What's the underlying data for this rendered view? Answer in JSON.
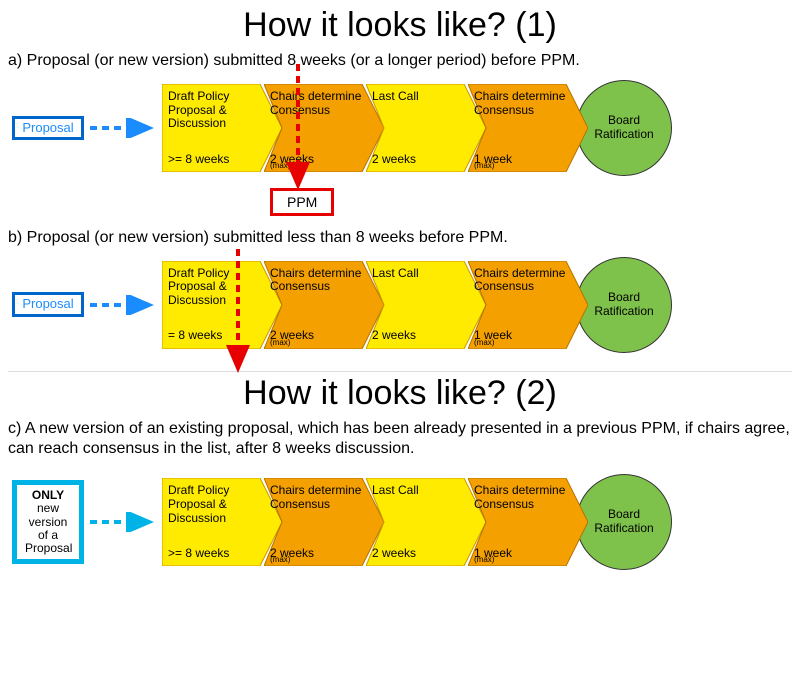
{
  "colors": {
    "yellow": "#ffeb00",
    "yellow_stroke": "#cc9900",
    "orange": "#f4a000",
    "orange_stroke": "#b57400",
    "green": "#7fc24b",
    "blue": "#1a8cff",
    "blue_dark": "#0066cc",
    "cyan": "#00b3e6",
    "red": "#e60000",
    "black": "#000000"
  },
  "layout": {
    "chevron_w": 120,
    "chevron_h": 88,
    "chevron_overlap": -18,
    "circle_d": 96,
    "arrow_len": 70
  },
  "title1": "How it looks like? (1)",
  "title2": "How it looks like? (2)",
  "section_a": {
    "desc": "a) Proposal (or new version) submitted 8 weeks (or a longer period) before PPM.",
    "proposal_label": "Proposal",
    "ppm_label": "PPM"
  },
  "section_b": {
    "desc": "b) Proposal (or new version) submitted less than 8 weeks before PPM.",
    "proposal_label": "Proposal"
  },
  "section_c": {
    "desc": "c) A new version of an existing proposal, which has been already presented in a previous PPM, if chairs agree, can reach consensus in the list, after 8 weeks discussion.",
    "proposal_line1": "ONLY",
    "proposal_line2": "new",
    "proposal_line3": "version",
    "proposal_line4": "of a",
    "proposal_line5": "Proposal"
  },
  "steps": {
    "draft_a": {
      "label": "Draft Policy Proposal & Discussion",
      "sub": ">= 8 weeks",
      "max": ""
    },
    "draft_b": {
      "label": "Draft Policy Proposal & Discussion",
      "sub": "= 8 weeks",
      "max": ""
    },
    "draft_c": {
      "label": "Draft Policy Proposal & Discussion",
      "sub": ">= 8 weeks",
      "max": ""
    },
    "chairs1": {
      "label": "Chairs determine Consensus",
      "sub": "2 weeks",
      "max": "(max)"
    },
    "lastcall": {
      "label": "Last Call",
      "sub": "2 weeks",
      "max": ""
    },
    "chairs2": {
      "label": "Chairs determine Consensus",
      "sub": "1 week",
      "max": "(max)"
    },
    "board": "Board Ratification"
  }
}
